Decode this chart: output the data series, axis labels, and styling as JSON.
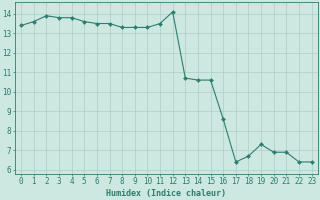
{
  "x": [
    0,
    1,
    2,
    3,
    4,
    5,
    6,
    7,
    8,
    9,
    10,
    11,
    12,
    13,
    14,
    15,
    16,
    17,
    18,
    19,
    20,
    21,
    22,
    23
  ],
  "y": [
    13.4,
    13.6,
    13.9,
    13.8,
    13.8,
    13.6,
    13.5,
    13.5,
    13.3,
    13.3,
    13.3,
    13.5,
    14.1,
    10.7,
    10.6,
    10.6,
    8.6,
    6.4,
    6.7,
    7.3,
    6.9,
    6.9,
    6.4,
    6.4
  ],
  "line_color": "#2e7d6e",
  "marker": "D",
  "marker_size": 2.0,
  "bg_color": "#cce8e0",
  "grid_color": "#aacfc8",
  "xlabel": "Humidex (Indice chaleur)",
  "ylim": [
    5.8,
    14.6
  ],
  "xlim": [
    -0.5,
    23.5
  ],
  "yticks": [
    6,
    7,
    8,
    9,
    10,
    11,
    12,
    13,
    14
  ],
  "xticks": [
    0,
    1,
    2,
    3,
    4,
    5,
    6,
    7,
    8,
    9,
    10,
    11,
    12,
    13,
    14,
    15,
    16,
    17,
    18,
    19,
    20,
    21,
    22,
    23
  ],
  "title_color": "#2e7d6e",
  "label_fontsize": 6.0,
  "tick_fontsize": 5.5
}
